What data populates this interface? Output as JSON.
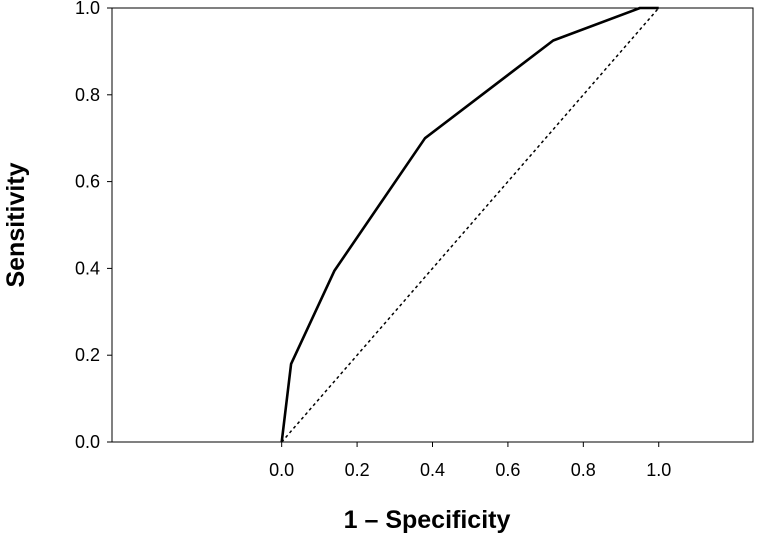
{
  "chart_data": {
    "type": "line",
    "title": "",
    "xlabel": "1 – Specificity",
    "ylabel": "Sensitivity",
    "xlim": [
      -0.45,
      1.25
    ],
    "ylim": [
      0,
      1
    ],
    "xticks": [
      0.0,
      0.2,
      0.4,
      0.6,
      0.8,
      1.0
    ],
    "xtick_labels": [
      "0.0",
      "0.2",
      "0.4",
      "0.6",
      "0.8",
      "1.0"
    ],
    "yticks": [
      0.0,
      0.2,
      0.4,
      0.6,
      0.8,
      1.0
    ],
    "ytick_labels": [
      "0.0",
      "0.2",
      "0.4",
      "0.6",
      "0.8",
      "1.0"
    ],
    "grid": false,
    "series": [
      {
        "style": "solid",
        "color": "#000000",
        "x": [
          0.0,
          0.025,
          0.14,
          0.38,
          0.72,
          0.95,
          1.0
        ],
        "y": [
          0.0,
          0.18,
          0.395,
          0.7,
          0.925,
          1.0,
          1.0
        ]
      },
      {
        "style": "dotted",
        "color": "#000000",
        "x": [
          0.0,
          1.0
        ],
        "y": [
          0.0,
          1.0
        ]
      }
    ]
  }
}
